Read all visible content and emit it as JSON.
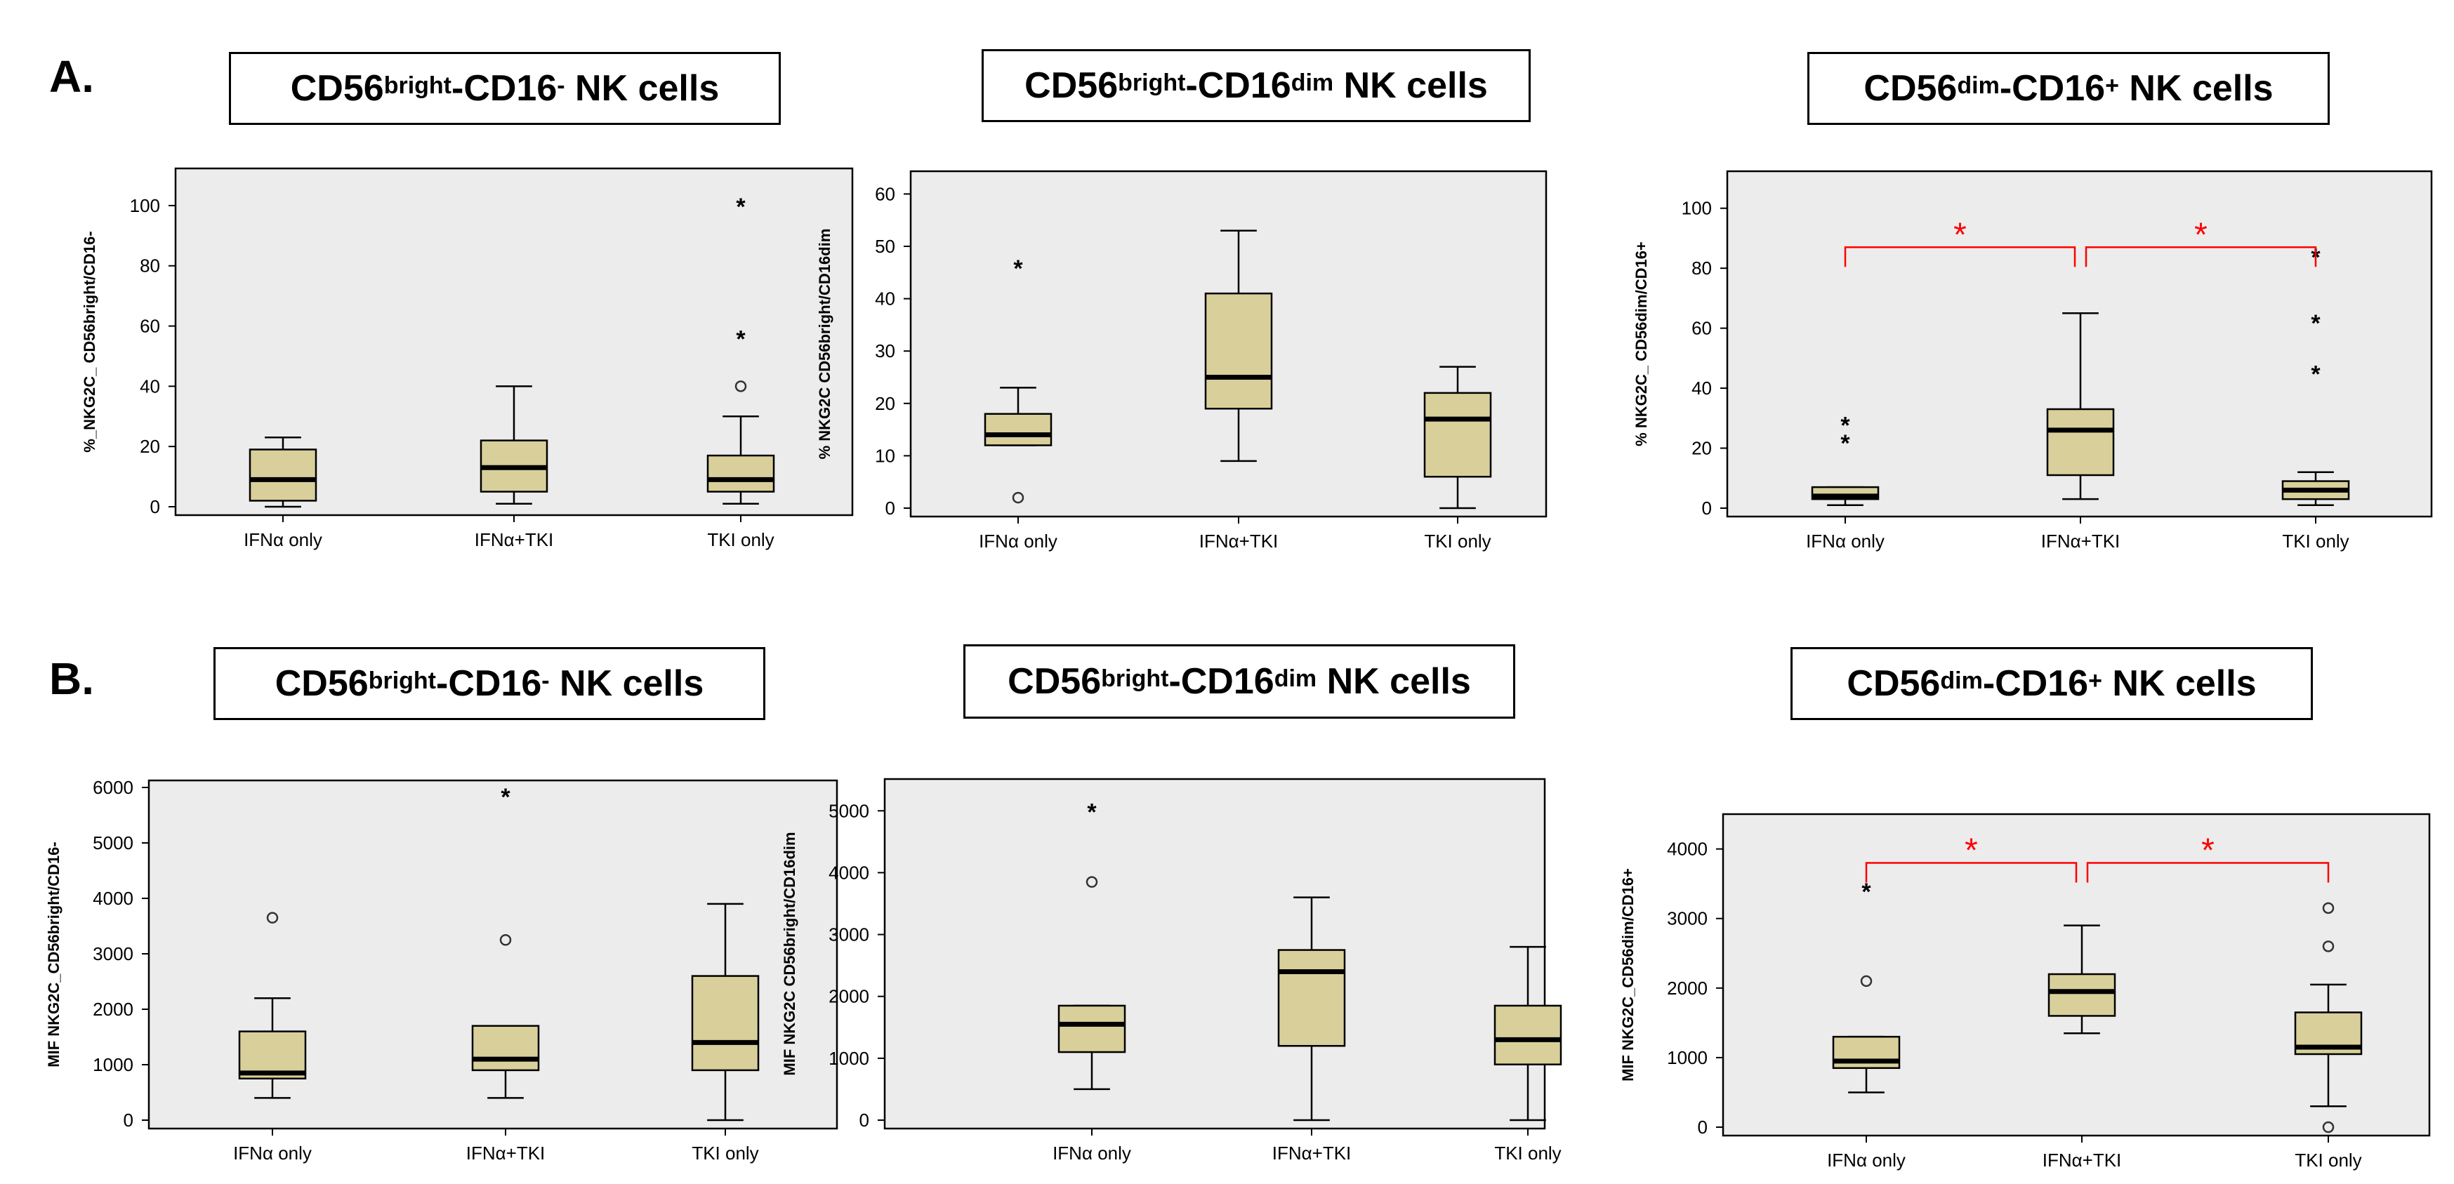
{
  "row_labels": {
    "a": "A.",
    "b": "B."
  },
  "titles": [
    {
      "prefix": "CD56",
      "sup1": "bright",
      "mid": "-CD16",
      "sup2": "-",
      "suffix": " NK cells"
    },
    {
      "prefix": "CD56",
      "sup1": "bright",
      "mid": "-CD16",
      "sup2": "dim",
      "suffix": " NK cells"
    },
    {
      "prefix": "CD56",
      "sup1": "dim",
      "mid": "-CD16",
      "sup2": "+",
      "suffix": " NK cells"
    },
    {
      "prefix": "CD56",
      "sup1": "bright",
      "mid": "-CD16",
      "sup2": "-",
      "suffix": " NK cells"
    },
    {
      "prefix": "CD56",
      "sup1": "bright",
      "mid": "-CD16",
      "sup2": "dim",
      "suffix": " NK cells"
    },
    {
      "prefix": "CD56",
      "sup1": "dim",
      "mid": "-CD16",
      "sup2": "+",
      "suffix": " NK cells"
    }
  ],
  "colors": {
    "plot_bg": "#ececec",
    "box_fill": "#d9cf9a",
    "significance": "#ff0000"
  },
  "chart_data": [
    {
      "type": "box",
      "ylabel": "%_NKG2C_ CD56bright/CD16-",
      "categories": [
        "IFNα only",
        "IFNα+TKI",
        "TKI only"
      ],
      "ylim": [
        0,
        110
      ],
      "yticks": [
        0,
        20,
        40,
        60,
        80,
        100
      ],
      "boxes": [
        {
          "min": 0,
          "q1": 2,
          "median": 9,
          "q3": 19,
          "max": 23,
          "outliers": [],
          "extremes": []
        },
        {
          "min": 1,
          "q1": 5,
          "median": 13,
          "q3": 22,
          "max": 40,
          "outliers": [],
          "extremes": []
        },
        {
          "min": 1,
          "q1": 5,
          "median": 9,
          "q3": 17,
          "max": 30,
          "outliers": [
            40
          ],
          "extremes": [
            56,
            100
          ]
        }
      ],
      "significance": []
    },
    {
      "type": "box",
      "ylabel": "% NKG2C CD56bright/CD16dim",
      "categories": [
        "IFNα only",
        "IFNα+TKI",
        "TKI only"
      ],
      "ylim": [
        0,
        63
      ],
      "yticks": [
        0,
        10,
        20,
        30,
        40,
        50,
        60
      ],
      "boxes": [
        {
          "min": 12,
          "q1": 12,
          "median": 14,
          "q3": 18,
          "max": 23,
          "outliers": [
            2
          ],
          "extremes": [
            46
          ]
        },
        {
          "min": 9,
          "q1": 19,
          "median": 25,
          "q3": 41,
          "max": 53,
          "outliers": [],
          "extremes": []
        },
        {
          "min": 0,
          "q1": 6,
          "median": 17,
          "q3": 22,
          "max": 27,
          "outliers": [],
          "extremes": []
        }
      ],
      "significance": []
    },
    {
      "type": "box",
      "ylabel": "% NKG2C_ CD56dim/CD16+",
      "categories": [
        "IFNα only",
        "IFNα+TKI",
        "TKI only"
      ],
      "ylim": [
        0,
        110
      ],
      "yticks": [
        0,
        20,
        40,
        60,
        80,
        100
      ],
      "boxes": [
        {
          "min": 1,
          "q1": 3,
          "median": 4,
          "q3": 7,
          "max": 7,
          "outliers": [],
          "extremes": [
            22,
            28
          ]
        },
        {
          "min": 3,
          "q1": 11,
          "median": 26,
          "q3": 33,
          "max": 65,
          "outliers": [],
          "extremes": []
        },
        {
          "min": 1,
          "q1": 3,
          "median": 6,
          "q3": 9,
          "max": 12,
          "outliers": [],
          "extremes": [
            45,
            62,
            84
          ]
        }
      ],
      "significance": [
        {
          "from": 0,
          "to": 1,
          "label": "*",
          "level": 87
        },
        {
          "from": 1,
          "to": 2,
          "label": "*",
          "level": 87
        }
      ]
    },
    {
      "type": "box",
      "ylabel": "MIF NKG2C_CD56bright/CD16-",
      "categories": [
        "IFNα only",
        "IFNα+TKI",
        "TKI only"
      ],
      "ylim": [
        0,
        6000
      ],
      "yticks": [
        0,
        1000,
        2000,
        3000,
        4000,
        5000,
        6000
      ],
      "boxes": [
        {
          "min": 400,
          "q1": 750,
          "median": 850,
          "q3": 1600,
          "max": 2200,
          "outliers": [
            3650
          ],
          "extremes": []
        },
        {
          "min": 400,
          "q1": 900,
          "median": 1100,
          "q3": 1700,
          "max": 1700,
          "outliers": [
            3250
          ],
          "extremes": [
            5850
          ]
        },
        {
          "min": 0,
          "q1": 900,
          "median": 1400,
          "q3": 2600,
          "max": 3900,
          "outliers": [],
          "extremes": []
        }
      ],
      "significance": []
    },
    {
      "type": "box",
      "ylabel": "MIF NKG2C CD56bright/CD16dim",
      "categories": [
        "IFNα only",
        "IFNα+TKI",
        "TKI only"
      ],
      "ylim": [
        0,
        5400
      ],
      "yticks": [
        0,
        1000,
        2000,
        3000,
        4000,
        5000
      ],
      "boxes": [
        {
          "min": 500,
          "q1": 1100,
          "median": 1550,
          "q3": 1850,
          "max": 1850,
          "outliers": [
            3850
          ],
          "extremes": [
            5000
          ]
        },
        {
          "min": 0,
          "q1": 1200,
          "median": 2400,
          "q3": 2750,
          "max": 3600,
          "outliers": [],
          "extremes": []
        },
        {
          "min": 0,
          "q1": 900,
          "median": 1300,
          "q3": 1850,
          "max": 2800,
          "outliers": [],
          "extremes": []
        }
      ],
      "significance": []
    },
    {
      "type": "box",
      "ylabel": "MIF NKG2C_CD56dim/CD16+",
      "categories": [
        "IFNα only",
        "IFNα+TKI",
        "TKI only"
      ],
      "ylim": [
        0,
        4400
      ],
      "yticks": [
        0,
        1000,
        2000,
        3000,
        4000
      ],
      "boxes": [
        {
          "min": 500,
          "q1": 850,
          "median": 950,
          "q3": 1300,
          "max": 1300,
          "outliers": [
            2100
          ],
          "extremes": [
            3400
          ]
        },
        {
          "min": 1350,
          "q1": 1600,
          "median": 1950,
          "q3": 2200,
          "max": 2900,
          "outliers": [],
          "extremes": []
        },
        {
          "min": 300,
          "q1": 1050,
          "median": 1150,
          "q3": 1650,
          "max": 2050,
          "outliers": [
            0,
            2600,
            3150
          ],
          "extremes": []
        }
      ],
      "significance": [
        {
          "from": 0,
          "to": 1,
          "label": "*",
          "level": 3800
        },
        {
          "from": 1,
          "to": 2,
          "label": "*",
          "level": 3800
        }
      ]
    }
  ]
}
